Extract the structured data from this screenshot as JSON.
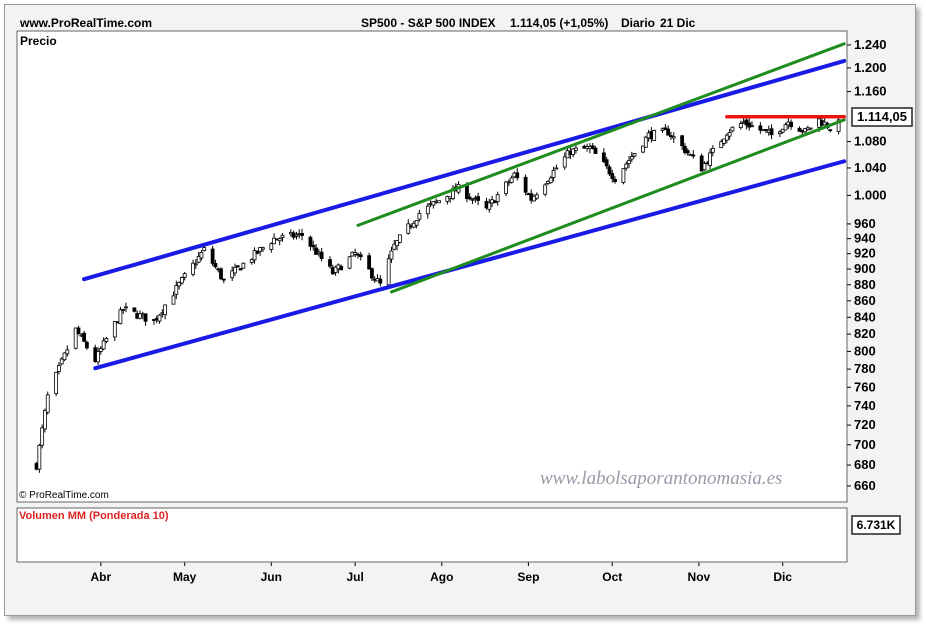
{
  "header": {
    "site": "www.ProRealTime.com",
    "instrument": "SP500 - S&P 500 INDEX",
    "quote": "1.114,05 (+1,05%)",
    "period": "Diario",
    "date": "21 Dic"
  },
  "price_panel": {
    "label": "Precio",
    "copyright": "© ProRealTime.com",
    "watermark": "www.labolsaporantonomasia.es",
    "last_price_badge": "1.114,05"
  },
  "volume_panel": {
    "label": "Volumen MM (Ponderada 10)",
    "badge": "6.731K"
  },
  "colors": {
    "channel_blue": "#1a1ae6",
    "channel_green": "#1e8c1e",
    "resistance_red": "#ee1111",
    "volume_up": "#7ed67e",
    "volume_down": "#f08080",
    "volume_ma": "#cc2222"
  },
  "chart_data": {
    "type": "candlestick",
    "scale": "log",
    "ylim": [
      645,
      1265
    ],
    "y_ticks": [
      "1.240",
      "1.200",
      "1.160",
      "1.114,05",
      "1.080",
      "1.040",
      "1.000",
      "960",
      "940",
      "920",
      "900",
      "880",
      "860",
      "840",
      "820",
      "800",
      "780",
      "760",
      "740",
      "720",
      "700",
      "680",
      "660"
    ],
    "y_tick_values": [
      1240,
      1200,
      1160,
      1114.05,
      1080,
      1040,
      1000,
      960,
      940,
      920,
      900,
      880,
      860,
      840,
      820,
      800,
      780,
      760,
      740,
      720,
      700,
      680,
      660
    ],
    "x_ticks": [
      "Abr",
      "May",
      "Jun",
      "Jul",
      "Ago",
      "Sep",
      "Oct",
      "Nov",
      "Dic"
    ],
    "anchors": [
      {
        "date": "2009-03-09",
        "close": 680
      },
      {
        "date": "2009-03-13",
        "close": 750
      },
      {
        "date": "2009-03-23",
        "close": 825
      },
      {
        "date": "2009-03-30",
        "close": 790
      },
      {
        "date": "2009-04-09",
        "close": 850
      },
      {
        "date": "2009-04-20",
        "close": 835
      },
      {
        "date": "2009-05-08",
        "close": 925
      },
      {
        "date": "2009-05-15",
        "close": 885
      },
      {
        "date": "2009-06-02",
        "close": 940
      },
      {
        "date": "2009-06-12",
        "close": 945
      },
      {
        "date": "2009-06-23",
        "close": 895
      },
      {
        "date": "2009-07-01",
        "close": 920
      },
      {
        "date": "2009-07-10",
        "close": 880
      },
      {
        "date": "2009-07-15",
        "close": 930
      },
      {
        "date": "2009-07-24",
        "close": 975
      },
      {
        "date": "2009-08-07",
        "close": 1010
      },
      {
        "date": "2009-08-17",
        "close": 980
      },
      {
        "date": "2009-08-27",
        "close": 1030
      },
      {
        "date": "2009-09-02",
        "close": 995
      },
      {
        "date": "2009-09-16",
        "close": 1065
      },
      {
        "date": "2009-09-23",
        "close": 1070
      },
      {
        "date": "2009-10-02",
        "close": 1025
      },
      {
        "date": "2009-10-14",
        "close": 1090
      },
      {
        "date": "2009-10-21",
        "close": 1095
      },
      {
        "date": "2009-11-02",
        "close": 1040
      },
      {
        "date": "2009-11-11",
        "close": 1095
      },
      {
        "date": "2009-11-17",
        "close": 1110
      },
      {
        "date": "2009-11-27",
        "close": 1090
      },
      {
        "date": "2009-12-03",
        "close": 1112
      },
      {
        "date": "2009-12-09",
        "close": 1095
      },
      {
        "date": "2009-12-14",
        "close": 1114
      },
      {
        "date": "2009-12-18",
        "close": 1102
      },
      {
        "date": "2009-12-21",
        "close": 1114.05
      }
    ],
    "trendlines": [
      {
        "name": "blue-channel-upper",
        "color": "blue",
        "from": {
          "date": "2009-03-26",
          "value": 887
        },
        "to": {
          "date": "2009-12-23",
          "value": 1212
        }
      },
      {
        "name": "blue-channel-lower",
        "color": "blue",
        "from": {
          "date": "2009-03-30",
          "value": 781
        },
        "to": {
          "date": "2009-12-23",
          "value": 1050
        }
      },
      {
        "name": "green-channel-upper",
        "color": "green",
        "from": {
          "date": "2009-07-02",
          "value": 958
        },
        "to": {
          "date": "2009-12-23",
          "value": 1242
        }
      },
      {
        "name": "green-channel-lower",
        "color": "green",
        "from": {
          "date": "2009-07-14",
          "value": 871
        },
        "to": {
          "date": "2009-12-23",
          "value": 1114
        }
      },
      {
        "name": "resistance",
        "color": "red",
        "from": {
          "date": "2009-11-11",
          "value": 1119
        },
        "to": {
          "date": "2009-12-23",
          "value": 1119
        }
      }
    ]
  }
}
